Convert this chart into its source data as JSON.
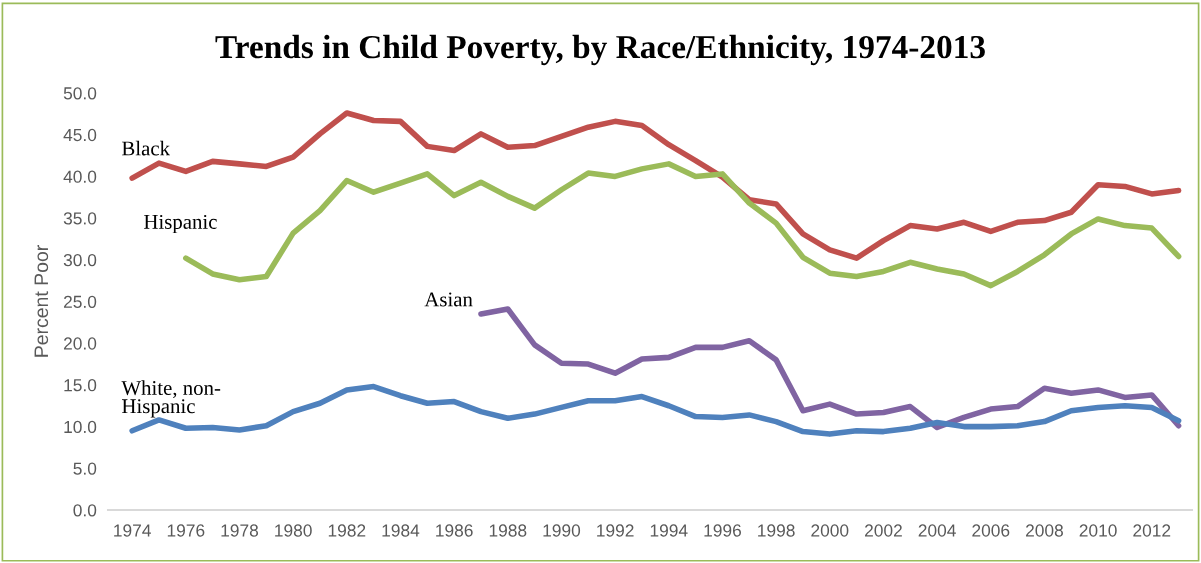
{
  "chart_data": {
    "type": "line",
    "title": "Trends in Child Poverty, by Race/Ethnicity, 1974-2013",
    "ylabel": "Percent Poor",
    "categories": [
      "1974",
      null,
      "1976",
      null,
      "1978",
      null,
      "1980",
      null,
      "1982",
      null,
      "1984",
      null,
      "1986",
      null,
      "1988",
      null,
      "1990",
      null,
      "1992",
      null,
      "1994",
      null,
      "1996",
      null,
      "1998",
      null,
      "2000",
      null,
      "2002",
      null,
      "2004",
      null,
      "2006",
      null,
      "2008",
      null,
      "2010",
      null,
      "2012",
      null
    ],
    "ylim": [
      0,
      50
    ],
    "yticks": [
      {
        "value": 0,
        "label": "0.0"
      },
      {
        "value": 5,
        "label": "5.0"
      },
      {
        "value": 10,
        "label": "10.0"
      },
      {
        "value": 15,
        "label": "15.0"
      },
      {
        "value": 20,
        "label": "20.0"
      },
      {
        "value": 25,
        "label": "25.0"
      },
      {
        "value": 30,
        "label": "30.0"
      },
      {
        "value": 35,
        "label": "35.0"
      },
      {
        "value": 40,
        "label": "40.0"
      },
      {
        "value": 45,
        "label": "45.0"
      },
      {
        "value": 50,
        "label": "50.0"
      }
    ],
    "grid": false,
    "legend": false,
    "marker": "none",
    "line_style": "solid",
    "series": [
      {
        "name": "Black",
        "color": "#c0504d",
        "values": [
          39.8,
          41.6,
          40.6,
          41.8,
          41.5,
          41.2,
          42.3,
          45.1,
          47.6,
          46.7,
          46.6,
          43.6,
          43.1,
          45.1,
          43.5,
          43.7,
          44.8,
          45.9,
          46.6,
          46.1,
          43.8,
          41.9,
          39.9,
          37.2,
          36.7,
          33.1,
          31.2,
          30.2,
          32.3,
          34.1,
          33.7,
          34.5,
          33.4,
          34.5,
          34.7,
          35.7,
          39.0,
          38.8,
          37.9,
          38.3
        ]
      },
      {
        "name": "Hispanic",
        "color": "#9bbb59",
        "values": [
          null,
          null,
          30.2,
          28.3,
          27.6,
          28.0,
          33.2,
          35.9,
          39.5,
          38.1,
          39.2,
          40.3,
          37.7,
          39.3,
          37.6,
          36.2,
          38.4,
          40.4,
          40.0,
          40.9,
          41.5,
          40.0,
          40.3,
          36.8,
          34.4,
          30.3,
          28.4,
          28.0,
          28.6,
          29.7,
          28.9,
          28.3,
          26.9,
          28.6,
          30.6,
          33.1,
          34.9,
          34.1,
          33.8,
          30.4
        ]
      },
      {
        "name": "Asian",
        "color": "#8064a2",
        "values": [
          null,
          null,
          null,
          null,
          null,
          null,
          null,
          null,
          null,
          null,
          null,
          null,
          null,
          23.5,
          24.1,
          19.8,
          17.6,
          17.5,
          16.4,
          18.1,
          18.3,
          19.5,
          19.5,
          20.3,
          18.0,
          11.9,
          12.7,
          11.5,
          11.7,
          12.4,
          9.9,
          11.1,
          12.1,
          12.4,
          14.6,
          14.0,
          14.4,
          13.5,
          13.8,
          10.1
        ]
      },
      {
        "name": "White, non-\nHispanic",
        "color": "#4f81bd",
        "values": [
          9.5,
          10.8,
          9.8,
          9.9,
          9.6,
          10.1,
          11.8,
          12.8,
          14.4,
          14.8,
          13.7,
          12.8,
          13.0,
          11.8,
          11.0,
          11.5,
          12.3,
          13.1,
          13.1,
          13.6,
          12.5,
          11.2,
          11.1,
          11.4,
          10.6,
          9.4,
          9.1,
          9.5,
          9.4,
          9.8,
          10.5,
          10.0,
          10.0,
          10.1,
          10.6,
          11.9,
          12.3,
          12.5,
          12.3,
          10.7
        ]
      }
    ]
  }
}
